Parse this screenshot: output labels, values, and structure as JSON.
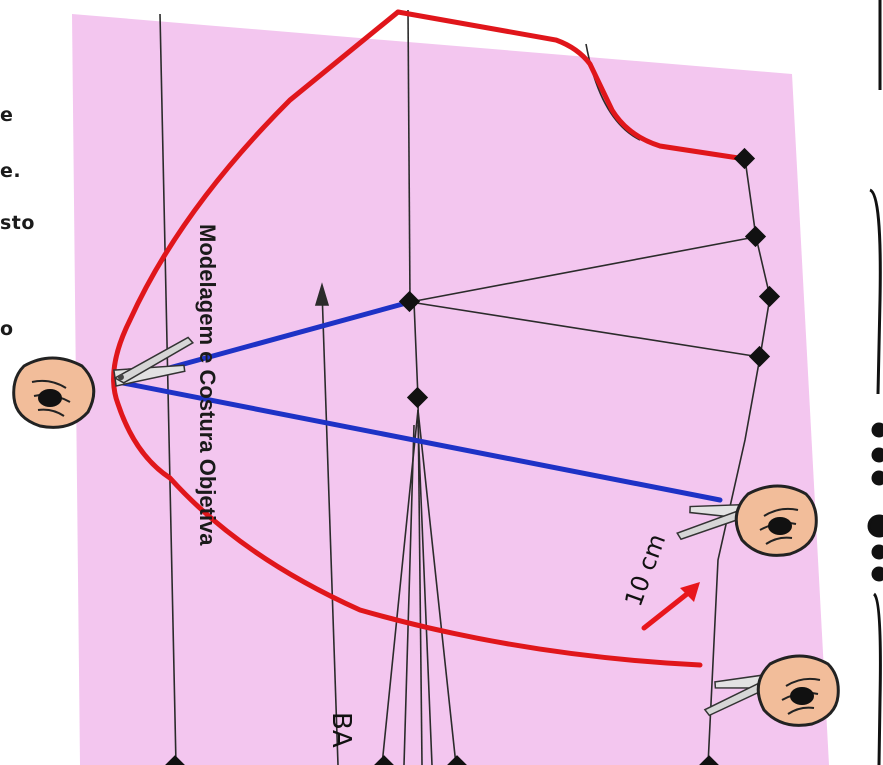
{
  "side_text_fragments": [
    "e",
    "e.",
    "sto",
    "o"
  ],
  "pattern": {
    "watermark": "Modelagem e Costura Objetiva",
    "measurement": "10 cm",
    "cut_label": "BA",
    "paper_color": "#f3c6ef",
    "red_line_color": "#e0161b",
    "blue_line_color": "#1e32c6",
    "arrow_color": "#e8161c"
  },
  "icons": [
    "scissors-icon",
    "scissors-icon",
    "scissors-icon"
  ]
}
